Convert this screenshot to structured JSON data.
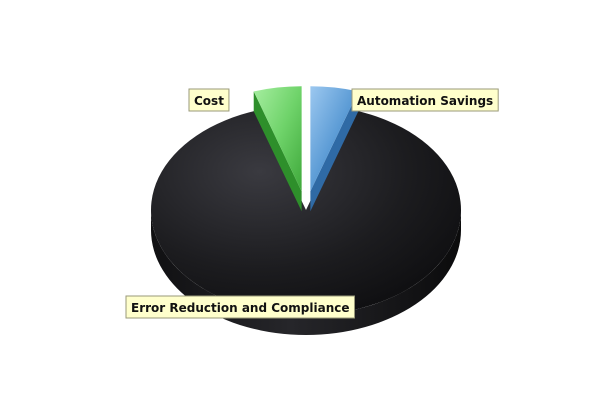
{
  "chart_data": {
    "type": "pie",
    "style": "3d",
    "legend": "none",
    "slices": [
      {
        "label": "Automation Savings",
        "value": 5,
        "color": "#5b9bd5"
      },
      {
        "label": "Error Reduction and Compliance",
        "value": 90,
        "color": "#1c1c1f"
      },
      {
        "label": "Cost",
        "value": 5,
        "color": "#6fd36a"
      }
    ]
  }
}
